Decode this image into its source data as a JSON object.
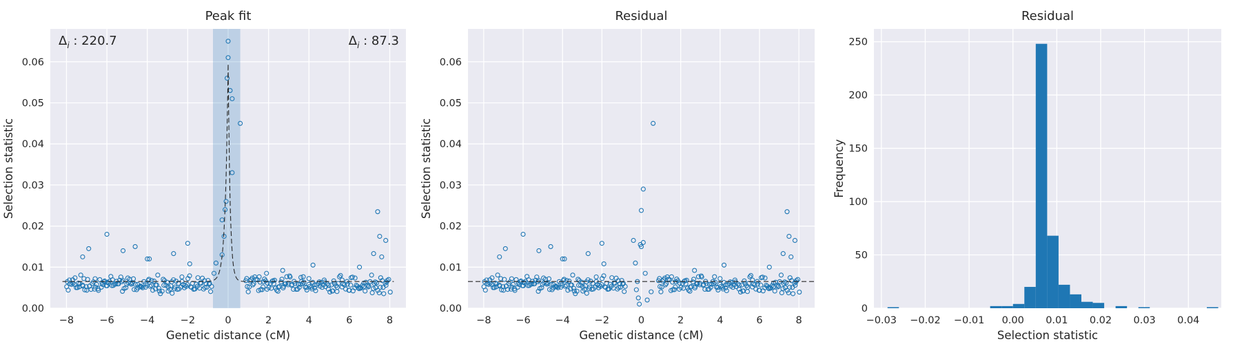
{
  "chart_data": [
    {
      "type": "scatter",
      "title": "Peak fit",
      "xlabel": "Genetic distance (cM)",
      "ylabel": "Selection statistic",
      "xlim": [
        -8.8,
        8.8
      ],
      "ylim": [
        0,
        0.068
      ],
      "xticks": [
        -8,
        -6,
        -4,
        -2,
        0,
        2,
        4,
        6,
        8
      ],
      "yticks": [
        0.0,
        0.01,
        0.02,
        0.03,
        0.04,
        0.05,
        0.06
      ],
      "grid": true,
      "annotations": {
        "left_label": "Δ",
        "left_sub": "i",
        "left_value": " : 220.7",
        "right_label": "Δ",
        "right_sub": "i",
        "right_value": " : 87.3"
      },
      "highlight_band": [
        -0.75,
        0.6
      ],
      "fit_curve": {
        "baseline": 0.0065,
        "peak_x": 0,
        "peak_y": 0.0595,
        "left_scale": 0.14,
        "right_scale": 0.1
      },
      "outliers": [
        [
          0.0,
          0.065
        ],
        [
          0.0,
          0.061
        ],
        [
          -0.05,
          0.056
        ],
        [
          0.1,
          0.053
        ],
        [
          0.2,
          0.051
        ],
        [
          0.6,
          0.045
        ],
        [
          0.2,
          0.033
        ],
        [
          -0.1,
          0.026
        ],
        [
          -0.15,
          0.024
        ],
        [
          -0.3,
          0.0215
        ],
        [
          -0.2,
          0.0175
        ],
        [
          -0.3,
          0.013
        ],
        [
          -0.6,
          0.011
        ],
        [
          -0.7,
          0.0085
        ],
        [
          -6.0,
          0.018
        ],
        [
          7.4,
          0.0235
        ],
        [
          7.5,
          0.0175
        ],
        [
          7.8,
          0.0165
        ],
        [
          7.6,
          0.0125
        ],
        [
          7.2,
          0.0133
        ],
        [
          -2.0,
          0.0158
        ],
        [
          -4.6,
          0.015
        ],
        [
          -5.2,
          0.014
        ],
        [
          -6.9,
          0.0145
        ],
        [
          -7.2,
          0.0125
        ],
        [
          -2.7,
          0.0133
        ],
        [
          -4.0,
          0.012
        ],
        [
          -3.9,
          0.012
        ],
        [
          4.2,
          0.0105
        ],
        [
          -1.9,
          0.0108
        ],
        [
          2.7,
          0.0092
        ],
        [
          1.9,
          0.0085
        ],
        [
          3.6,
          0.0075
        ],
        [
          6.5,
          0.01
        ]
      ],
      "bulk": {
        "x_range": [
          -8,
          8
        ],
        "count": 330,
        "base": 0.0058,
        "spread": 0.0016
      }
    },
    {
      "type": "scatter",
      "title": "Residual",
      "xlabel": "Genetic distance (cM)",
      "ylabel": "Selection statistic",
      "xlim": [
        -8.8,
        8.8
      ],
      "ylim": [
        0,
        0.068
      ],
      "xticks": [
        -8,
        -6,
        -4,
        -2,
        0,
        2,
        4,
        6,
        8
      ],
      "yticks": [
        0.0,
        0.01,
        0.02,
        0.03,
        0.04,
        0.05,
        0.06
      ],
      "grid": true,
      "reference_line": 0.0065,
      "outliers": [
        [
          0.6,
          0.045
        ],
        [
          0.1,
          0.029
        ],
        [
          0.0,
          0.0238
        ],
        [
          -0.4,
          0.0165
        ],
        [
          0.1,
          0.016
        ],
        [
          -0.05,
          0.0155
        ],
        [
          0.0,
          0.015
        ],
        [
          -0.3,
          0.011
        ],
        [
          0.2,
          0.0085
        ],
        [
          -0.2,
          0.0065
        ],
        [
          -0.1,
          0.001
        ],
        [
          0.3,
          0.002
        ],
        [
          -0.25,
          0.0045
        ],
        [
          0.5,
          0.004
        ],
        [
          -0.15,
          0.0025
        ],
        [
          -6.0,
          0.018
        ],
        [
          7.4,
          0.0235
        ],
        [
          7.5,
          0.0175
        ],
        [
          7.8,
          0.0165
        ],
        [
          7.6,
          0.0125
        ],
        [
          7.2,
          0.0133
        ],
        [
          -2.0,
          0.0158
        ],
        [
          -4.6,
          0.015
        ],
        [
          -5.2,
          0.014
        ],
        [
          -6.9,
          0.0145
        ],
        [
          -7.2,
          0.0125
        ],
        [
          -2.7,
          0.0133
        ],
        [
          -4.0,
          0.012
        ],
        [
          -3.9,
          0.012
        ],
        [
          4.2,
          0.0105
        ],
        [
          -1.9,
          0.0108
        ],
        [
          2.7,
          0.0092
        ],
        [
          6.5,
          0.01
        ]
      ],
      "bulk": {
        "x_range": [
          -8,
          8
        ],
        "count": 330,
        "base": 0.0058,
        "spread": 0.0016
      }
    },
    {
      "type": "bar",
      "title": "Residual",
      "xlabel": "Selection statistic",
      "ylabel": "Frequency",
      "xlim": [
        -0.0317,
        0.0475
      ],
      "ylim": [
        0,
        262
      ],
      "xticks": [
        -0.03,
        -0.02,
        -0.01,
        0.0,
        0.01,
        0.02,
        0.03,
        0.04
      ],
      "ytick_values": [
        0,
        50,
        100,
        150,
        200,
        250
      ],
      "grid": true,
      "bins": [
        {
          "x0": -0.0286,
          "x1": -0.026,
          "count": 1
        },
        {
          "x0": -0.0052,
          "x1": -0.0026,
          "count": 2
        },
        {
          "x0": -0.0026,
          "x1": 0.0,
          "count": 2
        },
        {
          "x0": 0.0,
          "x1": 0.0026,
          "count": 4
        },
        {
          "x0": 0.0026,
          "x1": 0.0052,
          "count": 20
        },
        {
          "x0": 0.0052,
          "x1": 0.0078,
          "count": 248
        },
        {
          "x0": 0.0078,
          "x1": 0.0104,
          "count": 68
        },
        {
          "x0": 0.0104,
          "x1": 0.013,
          "count": 22
        },
        {
          "x0": 0.013,
          "x1": 0.0156,
          "count": 13
        },
        {
          "x0": 0.0156,
          "x1": 0.0182,
          "count": 6
        },
        {
          "x0": 0.0182,
          "x1": 0.0208,
          "count": 5
        },
        {
          "x0": 0.0234,
          "x1": 0.026,
          "count": 2
        },
        {
          "x0": 0.0286,
          "x1": 0.0312,
          "count": 1
        },
        {
          "x0": 0.0442,
          "x1": 0.0468,
          "count": 1
        }
      ]
    }
  ]
}
